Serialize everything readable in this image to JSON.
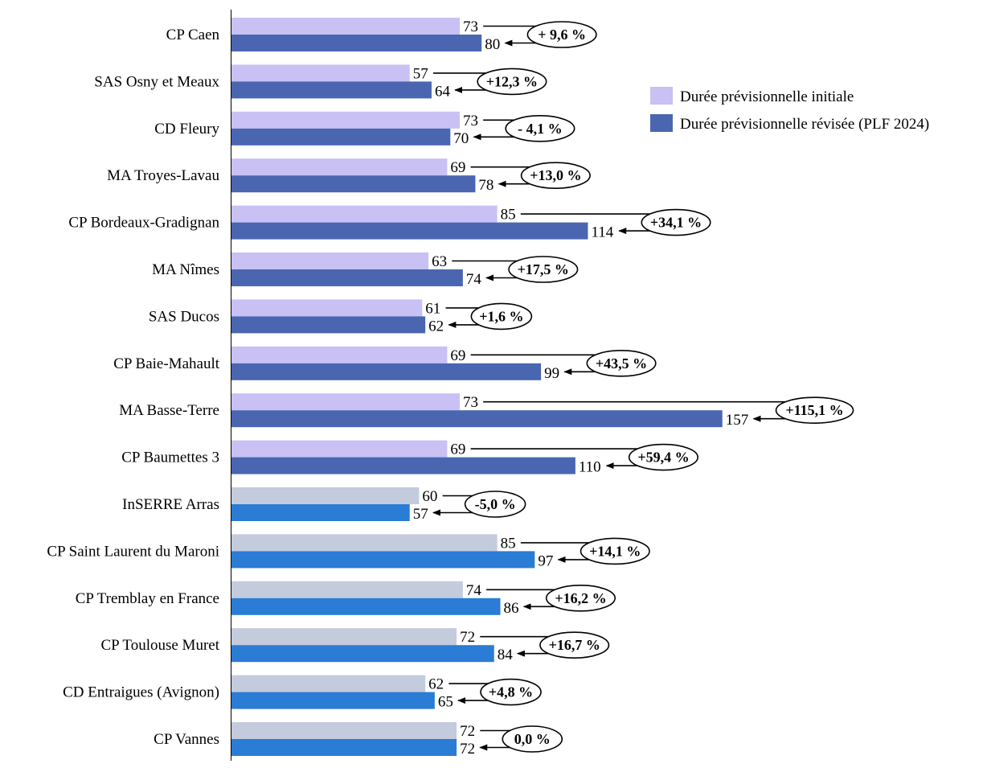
{
  "chart_data": {
    "type": "bar",
    "orientation": "horizontal",
    "categories": [
      "CP Caen",
      "SAS Osny et Meaux",
      "CD Fleury",
      "MA Troyes-Lavau",
      "CP Bordeaux-Gradignan",
      "MA Nîmes",
      "SAS Ducos",
      "CP Baie-Mahault",
      "MA Basse-Terre",
      "CP Baumettes 3",
      "InSERRE Arras",
      "CP Saint Laurent du Maroni",
      "CP Tremblay en France",
      "CP Toulouse Muret",
      "CD Entraigues (Avignon)",
      "CP Vannes"
    ],
    "series": [
      {
        "name": "Durée prévisionnelle initiale",
        "values": [
          73,
          57,
          73,
          69,
          85,
          63,
          61,
          69,
          73,
          69,
          60,
          85,
          74,
          72,
          62,
          72
        ]
      },
      {
        "name": "Durée prévisionnelle révisée (PLF 2024)",
        "values": [
          80,
          64,
          70,
          78,
          114,
          74,
          62,
          99,
          157,
          110,
          57,
          97,
          86,
          84,
          65,
          72
        ]
      }
    ],
    "variation_labels": [
      "+ 9,6 %",
      "+12,3 %",
      "- 4,1 %",
      "+13,0 %",
      "+34,1 %",
      "+17,5 %",
      "+1,6 %",
      "+43,5 %",
      "+115,1 %",
      "+59,4 %",
      "-5,0 %",
      "+14,1 %",
      "+16,2 %",
      "+16,7 %",
      "+4,8 %",
      "0,0 %"
    ],
    "group_colors": {
      "group1_count": 10,
      "group1": {
        "initial": "#c9c0f4",
        "revised": "#4a66b0"
      },
      "group2": {
        "initial": "#c3cbdc",
        "revised": "#2a7cd5"
      }
    },
    "legend": {
      "position": "top-right",
      "items": [
        "Durée prévisionnelle initiale",
        "Durée prévisionnelle révisée (PLF 2024)"
      ]
    },
    "xlim": [
      0,
      240
    ],
    "grid": false,
    "x_axis_visible": false
  }
}
